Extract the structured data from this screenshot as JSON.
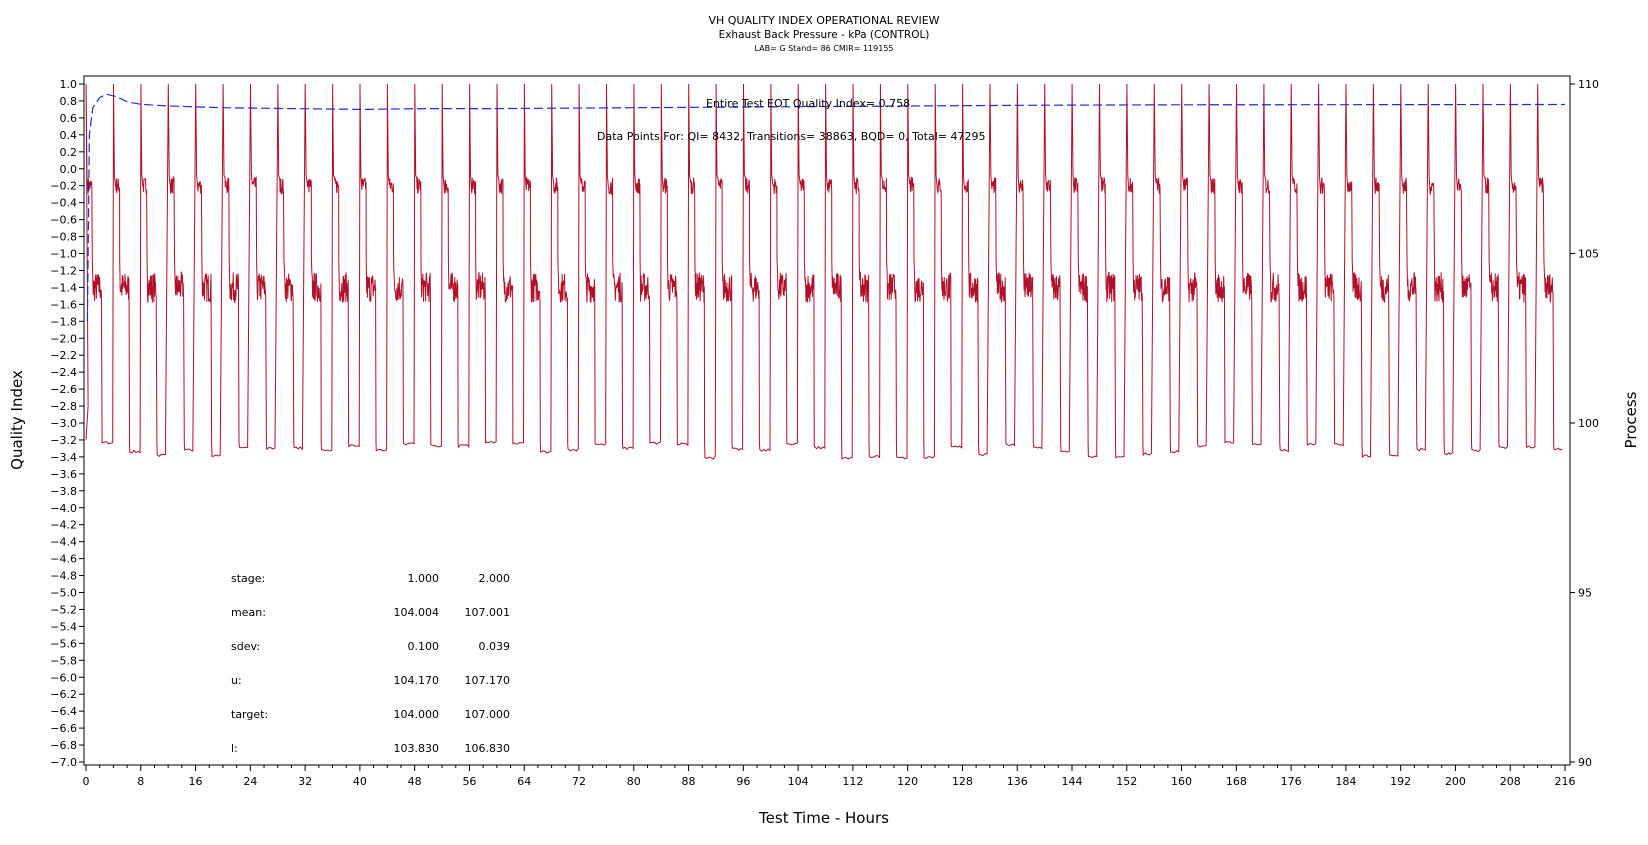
{
  "chart_data": {
    "type": "line",
    "title": "VH QUALITY INDEX OPERATIONAL REVIEW",
    "subtitle": "Exhaust Back Pressure - kPa (CONTROL)",
    "subtitle2": "LAB= G Stand= 86 CMIR= 119155",
    "xlabel": "Test Time - Hours",
    "ylabel_left": "Quality Index",
    "ylabel_right": "Process",
    "xlim": [
      0,
      216
    ],
    "ylim_left": [
      -7.0,
      1.0
    ],
    "ylim_right": [
      90,
      110
    ],
    "xticks": [
      "0",
      "8",
      "16",
      "24",
      "32",
      "40",
      "48",
      "56",
      "64",
      "72",
      "80",
      "88",
      "96",
      "104",
      "112",
      "120",
      "128",
      "136",
      "144",
      "152",
      "160",
      "168",
      "176",
      "184",
      "192",
      "200",
      "208",
      "216"
    ],
    "yticks_left": [
      "1.0",
      "0.8",
      "0.6",
      "0.4",
      "0.2",
      "0.0",
      "-0.2",
      "-0.4",
      "-0.6",
      "-0.8",
      "-1.0",
      "-1.2",
      "-1.4",
      "-1.6",
      "-1.8",
      "-2.0",
      "-2.2",
      "-2.4",
      "-2.6",
      "-2.8",
      "-3.0",
      "-3.2",
      "-3.4",
      "-3.6",
      "-3.8",
      "-4.0",
      "-4.2",
      "-4.4",
      "-4.6",
      "-4.8",
      "-5.0",
      "-5.2",
      "-5.4",
      "-5.6",
      "-5.8",
      "-6.0",
      "-6.2",
      "-6.4",
      "-6.6",
      "-6.8",
      "-7.0"
    ],
    "yticks_right": [
      "110",
      "105",
      "100",
      "95",
      "90"
    ],
    "annotation_qi": "Entire Test EOT Quality Index=   0.758",
    "annotation_points": "Data Points For: QI=  8432, Transitions= 38863, BQD=     0, Total= 47295",
    "series": [
      {
        "color": "#b0102a",
        "axis": "right",
        "pattern": "periodic",
        "period_hours": 4,
        "low_level_kPa": 104.0,
        "high_level_kPa": 107.0,
        "dip_kPa": 99.2,
        "spike_kPa": 110.0,
        "start": [
          [
            0,
            99.5
          ],
          [
            0.3,
            100.5
          ]
        ]
      },
      {
        "color": "#1a2ee0",
        "axis": "left",
        "style": "dashed",
        "points": [
          [
            0.2,
            -1.8
          ],
          [
            0.5,
            0.4
          ],
          [
            1.0,
            0.72
          ],
          [
            2.0,
            0.84
          ],
          [
            3.0,
            0.88
          ],
          [
            4.5,
            0.85
          ],
          [
            6,
            0.79
          ],
          [
            8,
            0.76
          ],
          [
            12,
            0.74
          ],
          [
            20,
            0.72
          ],
          [
            30,
            0.71
          ],
          [
            40,
            0.7
          ],
          [
            50,
            0.71
          ],
          [
            60,
            0.71
          ],
          [
            80,
            0.72
          ],
          [
            100,
            0.73
          ],
          [
            120,
            0.74
          ],
          [
            140,
            0.75
          ],
          [
            160,
            0.755
          ],
          [
            216,
            0.758
          ]
        ]
      }
    ]
  },
  "stats": {
    "rows": [
      {
        "label": "stage:",
        "v1": "1.000",
        "v2": "2.000"
      },
      {
        "label": "mean:",
        "v1": "104.004",
        "v2": "107.001"
      },
      {
        "label": "sdev:",
        "v1": "0.100",
        "v2": "0.039"
      },
      {
        "label": "u:",
        "v1": "104.170",
        "v2": "107.170"
      },
      {
        "label": "target:",
        "v1": "104.000",
        "v2": "107.000"
      },
      {
        "label": "l:",
        "v1": "103.830",
        "v2": "106.830"
      }
    ]
  }
}
